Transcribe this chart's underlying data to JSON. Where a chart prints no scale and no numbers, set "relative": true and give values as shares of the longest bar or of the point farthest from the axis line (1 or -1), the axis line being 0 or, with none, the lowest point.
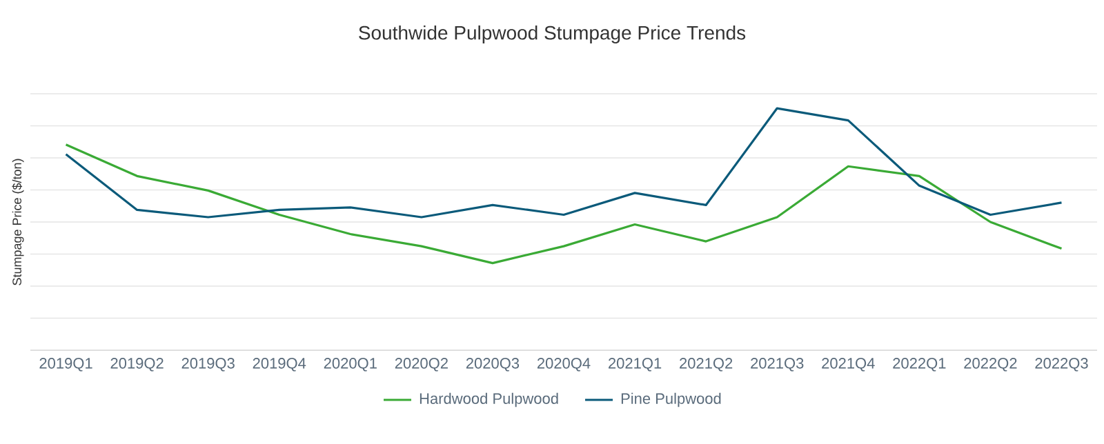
{
  "chart_data": {
    "type": "line",
    "title": "Southwide Pulpwood Stumpage Price Trends",
    "ylabel": "Stumpage Price ($/ton)",
    "categories": [
      "2019Q1",
      "2019Q2",
      "2019Q3",
      "2019Q4",
      "2020Q1",
      "2020Q2",
      "2020Q3",
      "2020Q4",
      "2021Q1",
      "2021Q2",
      "2021Q3",
      "2021Q4",
      "2022Q1",
      "2022Q2",
      "2022Q3"
    ],
    "relative": true,
    "grid": "y",
    "legend": "bottom",
    "marker": "none",
    "line_style": "solid",
    "series": [
      {
        "name": "Hardwood Pulpwood",
        "color": "#3aaa35",
        "values": [
          0.85,
          0.72,
          0.66,
          0.56,
          0.48,
          0.43,
          0.36,
          0.43,
          0.52,
          0.45,
          0.55,
          0.76,
          0.72,
          0.53,
          0.42
        ]
      },
      {
        "name": "Pine Pulpwood",
        "color": "#0b5a7a",
        "values": [
          0.81,
          0.58,
          0.55,
          0.58,
          0.59,
          0.55,
          0.6,
          0.56,
          0.65,
          0.6,
          1,
          0.95,
          0.68,
          0.56,
          0.61
        ]
      }
    ]
  }
}
